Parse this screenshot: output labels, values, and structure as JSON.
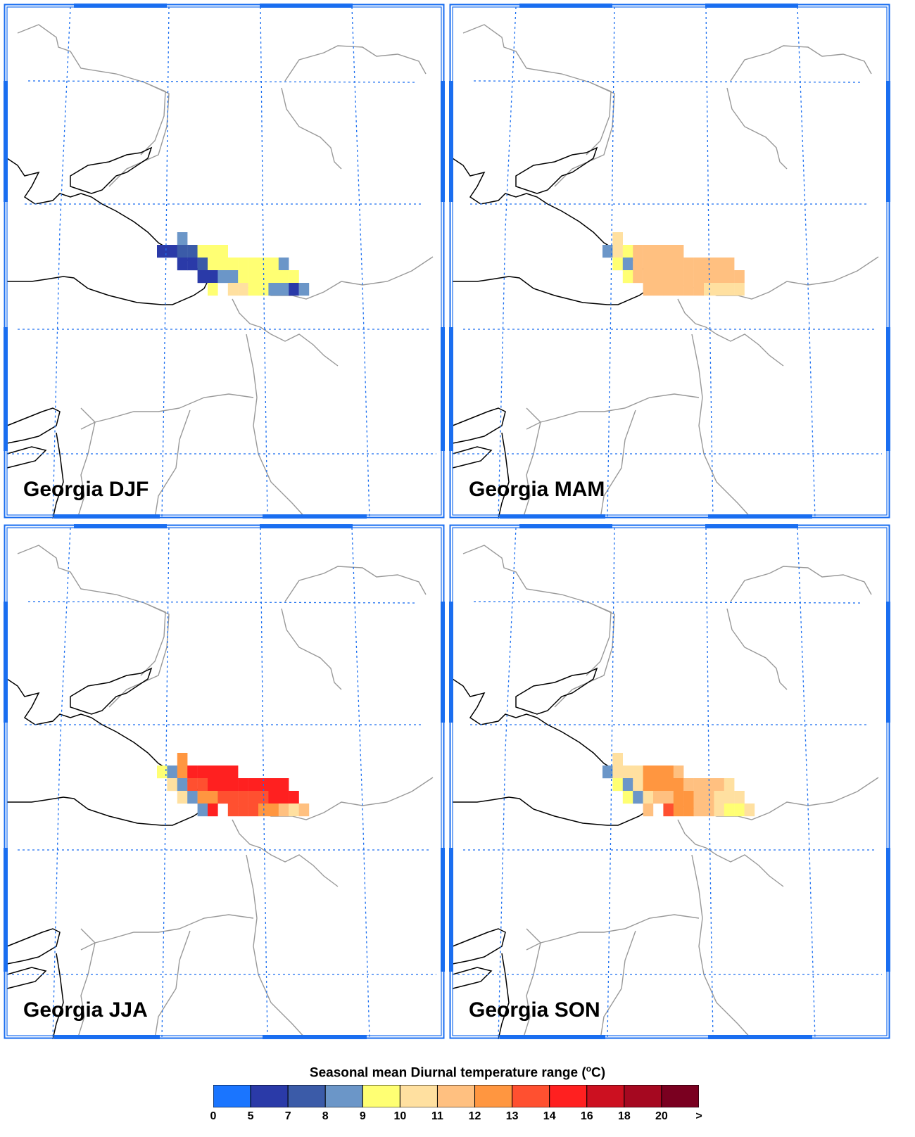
{
  "panels": [
    {
      "title": "Georgia DJF",
      "season": "DJF"
    },
    {
      "title": "Georgia MAM",
      "season": "MAM"
    },
    {
      "title": "Georgia JJA",
      "season": "JJA"
    },
    {
      "title": "Georgia SON",
      "season": "SON"
    }
  ],
  "legend": {
    "title_main": "Seasonal mean Diurnal temperature range (",
    "title_unit_sup": "o",
    "title_unit": "C)",
    "colors": [
      "#1a75ff",
      "#2a3aa8",
      "#3b5ba8",
      "#6b96c8",
      "#ffff73",
      "#ffe0a0",
      "#ffc080",
      "#ff9640",
      "#ff5030",
      "#ff2020",
      "#cc1020",
      "#a50820",
      "#7a0020"
    ],
    "tick_labels": [
      "0",
      "5",
      "7",
      "8",
      "9",
      "10",
      "11",
      "12",
      "13",
      "14",
      "16",
      "18",
      "20",
      ">"
    ]
  },
  "colors": {
    "frame": "#1a6ef0",
    "grid": "#1a6ef0",
    "country_border": "#999999",
    "coastline": "#000000"
  }
}
